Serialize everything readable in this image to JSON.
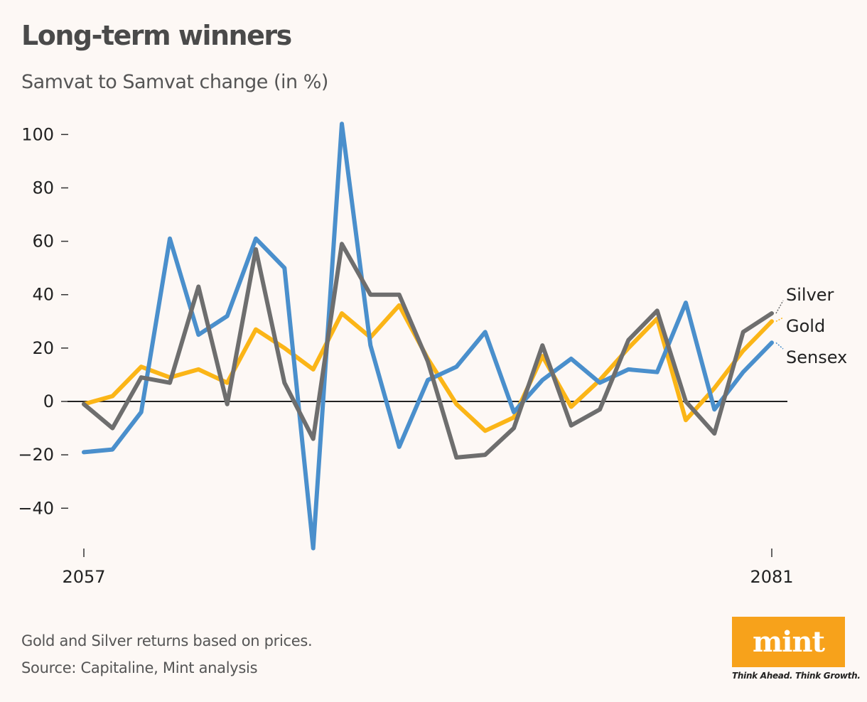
{
  "title": "Long-term winners",
  "subtitle": "Samvat to Samvat change (in %)",
  "footnote": "Gold and Silver returns based on prices.",
  "source": "Source: Capitaline, Mint analysis",
  "brand": {
    "logo_text": "mint",
    "tagline": "Think Ahead. Think Growth.",
    "color": "#f7a21b"
  },
  "chart_data": {
    "type": "line",
    "title": "Long-term winners",
    "subtitle": "Samvat to Samvat change (in %)",
    "xlabel": "",
    "ylabel": "",
    "x": [
      2057,
      2058,
      2059,
      2060,
      2061,
      2062,
      2063,
      2064,
      2065,
      2066,
      2067,
      2068,
      2069,
      2070,
      2071,
      2072,
      2073,
      2074,
      2075,
      2076,
      2077,
      2078,
      2079,
      2080,
      2081
    ],
    "xlim": [
      2057,
      2081
    ],
    "x_ticks": [
      "2057",
      "2081"
    ],
    "ylim": [
      -55,
      104
    ],
    "y_ticks": [
      100,
      80,
      60,
      40,
      20,
      0,
      -20,
      -40
    ],
    "y_tick_labels": [
      "100",
      "80",
      "60",
      "40",
      "20",
      "0",
      "−20",
      "−40"
    ],
    "zero_line": true,
    "grid": false,
    "legend": "direct labels at right end",
    "series": [
      {
        "name": "Sensex",
        "color": "#4a8fcc",
        "values": [
          -19,
          -18,
          -4,
          61,
          25,
          32,
          61,
          50,
          -55,
          104,
          21,
          -17,
          8,
          13,
          26,
          -4,
          8,
          16,
          7,
          12,
          11,
          37,
          -3,
          11,
          22
        ]
      },
      {
        "name": "Gold",
        "color": "#fbb517",
        "values": [
          -1,
          2,
          13,
          9,
          12,
          7,
          27,
          20,
          12,
          33,
          24,
          36,
          16,
          -1,
          -11,
          -6,
          17,
          -2,
          8,
          20,
          31,
          -7,
          5,
          19,
          30
        ]
      },
      {
        "name": "Silver",
        "color": "#6e6e6e",
        "values": [
          -1,
          -10,
          9,
          7,
          43,
          -1,
          57,
          7,
          -14,
          59,
          40,
          40,
          15,
          -21,
          -20,
          -10,
          21,
          -9,
          -3,
          23,
          34,
          0,
          -12,
          26,
          33
        ]
      }
    ],
    "label_order": [
      "Silver",
      "Gold",
      "Sensex"
    ]
  }
}
